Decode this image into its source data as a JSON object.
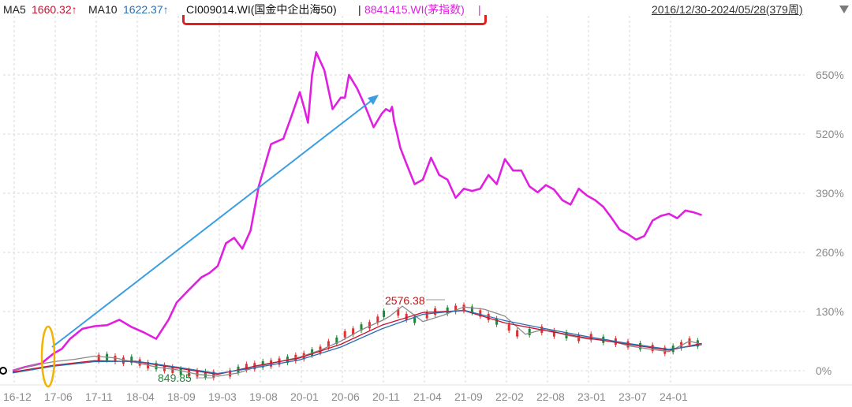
{
  "header": {
    "ma5_label": "MA5",
    "ma5_value": "1660.32↑",
    "ma10_label": "MA10",
    "ma10_value": "1622.37↑",
    "series1_label": "CI009014.WI(国金中企出海50)",
    "separator1": "|",
    "series2_label": "8841415.WI(茅指数)",
    "separator2": "|",
    "date_range": "2016/12/30-2024/05/28(379周)",
    "ma5_color": "#c8102e",
    "ma10_color": "#2a6fb0",
    "series2_color": "#e020e0",
    "highlight_box_color": "#e02020"
  },
  "chart_data": {
    "type": "line",
    "x_ticks": [
      "16-12",
      "17-06",
      "17-11",
      "18-04",
      "18-09",
      "19-03",
      "19-08",
      "20-01",
      "20-06",
      "20-11",
      "21-04",
      "21-09",
      "22-02",
      "22-08",
      "23-01",
      "23-07",
      "24-01"
    ],
    "y_ticks": [
      "0%",
      "130%",
      "260%",
      "390%",
      "520%",
      "650%"
    ],
    "ylim": [
      -30,
      760
    ],
    "annotations": {
      "max_label": "2576.38",
      "min_label": "849.85"
    },
    "series": [
      {
        "name": "8841415.WI(茅指数)",
        "color": "#e020e0",
        "x": [
          0,
          0.3,
          0.7,
          1.0,
          1.2,
          1.4,
          1.7,
          2.0,
          2.3,
          2.6,
          2.9,
          3.2,
          3.5,
          3.8,
          4.0,
          4.3,
          4.6,
          4.8,
          5.0,
          5.2,
          5.4,
          5.6,
          5.8,
          6.0,
          6.3,
          6.6,
          6.8,
          7.0,
          7.1,
          7.2,
          7.3,
          7.4,
          7.6,
          7.8,
          8.0,
          8.1,
          8.2,
          8.4,
          8.6,
          8.8,
          9.0,
          9.1,
          9.2,
          9.25,
          9.3,
          9.35,
          9.45,
          9.6,
          9.8,
          10.0,
          10.2,
          10.4,
          10.6,
          10.8,
          11.0,
          11.2,
          11.4,
          11.6,
          11.8,
          12.0,
          12.2,
          12.4,
          12.6,
          12.8,
          13.0,
          13.2,
          13.4,
          13.6,
          13.8,
          14.0,
          14.2,
          14.4,
          14.6,
          14.8,
          15.0,
          15.2,
          15.4,
          15.6,
          15.8,
          16.0,
          16.2,
          16.4,
          16.6,
          16.8
        ],
        "values": [
          0,
          8,
          16,
          38,
          48,
          70,
          92,
          98,
          100,
          112,
          96,
          84,
          70,
          112,
          150,
          178,
          205,
          215,
          230,
          280,
          292,
          268,
          308,
          405,
          498,
          510,
          560,
          612,
          580,
          545,
          650,
          700,
          660,
          575,
          600,
          600,
          650,
          620,
          580,
          535,
          565,
          575,
          570,
          580,
          548,
          530,
          490,
          455,
          410,
          420,
          468,
          430,
          420,
          380,
          400,
          395,
          400,
          430,
          410,
          465,
          440,
          440,
          405,
          392,
          408,
          398,
          375,
          365,
          400,
          385,
          375,
          360,
          336,
          310,
          300,
          288,
          296,
          330,
          340,
          345,
          335,
          352,
          348,
          342
        ]
      },
      {
        "name": "CI009014.WI(国金中企出海50)",
        "color": "#8a8a8a",
        "x": [
          0,
          0.5,
          1.0,
          1.5,
          2.0,
          2.5,
          3.0,
          3.5,
          4.0,
          4.5,
          5.0,
          5.5,
          6.0,
          6.5,
          7.0,
          7.5,
          8.0,
          8.5,
          9.0,
          9.2,
          9.5,
          10.0,
          10.5,
          11.0,
          11.5,
          12.0,
          12.5,
          13.0,
          13.5,
          14.0,
          14.5,
          15.0,
          15.5,
          16.0,
          16.5,
          16.8
        ],
        "values": [
          0,
          12,
          20,
          25,
          32,
          28,
          18,
          8,
          2,
          -8,
          -12,
          -5,
          10,
          20,
          30,
          45,
          65,
          90,
          110,
          120,
          142,
          108,
          122,
          140,
          135,
          120,
          80,
          92,
          78,
          70,
          68,
          55,
          48,
          42,
          65,
          58
        ]
      },
      {
        "name": "MA5",
        "color": "#c8102e",
        "x": [
          0,
          1,
          2,
          3,
          4,
          5,
          6,
          7,
          8,
          9,
          10,
          11,
          12,
          13,
          14,
          15,
          16,
          16.8
        ],
        "values": [
          -3,
          12,
          22,
          20,
          6,
          -8,
          12,
          28,
          58,
          100,
          128,
          132,
          105,
          88,
          72,
          58,
          45,
          60
        ]
      },
      {
        "name": "MA10",
        "color": "#2a6fb0",
        "x": [
          0,
          1,
          2,
          3,
          4,
          5,
          6,
          7,
          8,
          9,
          10,
          11,
          12,
          13,
          14,
          15,
          16,
          16.8
        ],
        "values": [
          -5,
          10,
          20,
          21,
          8,
          -6,
          8,
          24,
          52,
          92,
          124,
          133,
          110,
          92,
          75,
          60,
          47,
          57
        ]
      }
    ],
    "candles": [
      {
        "x": 2.1,
        "v": 28
      },
      {
        "x": 2.3,
        "v": 30
      },
      {
        "x": 2.5,
        "v": 26
      },
      {
        "x": 2.7,
        "v": 22
      },
      {
        "x": 2.9,
        "v": 24
      },
      {
        "x": 3.1,
        "v": 18
      },
      {
        "x": 3.3,
        "v": 12
      },
      {
        "x": 3.5,
        "v": 10
      },
      {
        "x": 3.7,
        "v": 6
      },
      {
        "x": 3.9,
        "v": 2
      },
      {
        "x": 4.1,
        "v": -2
      },
      {
        "x": 4.3,
        "v": -5
      },
      {
        "x": 4.5,
        "v": -6
      },
      {
        "x": 4.7,
        "v": -8
      },
      {
        "x": 4.9,
        "v": -9
      },
      {
        "x": 5.3,
        "v": -6
      },
      {
        "x": 5.5,
        "v": 2
      },
      {
        "x": 5.7,
        "v": 8
      },
      {
        "x": 5.9,
        "v": 10
      },
      {
        "x": 6.1,
        "v": 14
      },
      {
        "x": 6.3,
        "v": 16
      },
      {
        "x": 6.5,
        "v": 20
      },
      {
        "x": 6.7,
        "v": 24
      },
      {
        "x": 6.9,
        "v": 28
      },
      {
        "x": 7.1,
        "v": 32
      },
      {
        "x": 7.3,
        "v": 40
      },
      {
        "x": 7.5,
        "v": 46
      },
      {
        "x": 7.7,
        "v": 58
      },
      {
        "x": 7.9,
        "v": 66
      },
      {
        "x": 8.1,
        "v": 80
      },
      {
        "x": 8.3,
        "v": 86
      },
      {
        "x": 8.5,
        "v": 95
      },
      {
        "x": 8.7,
        "v": 100
      },
      {
        "x": 8.9,
        "v": 112
      },
      {
        "x": 9.05,
        "v": 125
      },
      {
        "x": 9.4,
        "v": 128
      },
      {
        "x": 9.6,
        "v": 118
      },
      {
        "x": 9.8,
        "v": 112
      },
      {
        "x": 10.1,
        "v": 122
      },
      {
        "x": 10.3,
        "v": 130
      },
      {
        "x": 10.6,
        "v": 132
      },
      {
        "x": 10.8,
        "v": 136
      },
      {
        "x": 11.0,
        "v": 138
      },
      {
        "x": 11.2,
        "v": 134
      },
      {
        "x": 11.4,
        "v": 126
      },
      {
        "x": 11.6,
        "v": 118
      },
      {
        "x": 11.8,
        "v": 108
      },
      {
        "x": 12.1,
        "v": 95
      },
      {
        "x": 12.3,
        "v": 82
      },
      {
        "x": 12.6,
        "v": 85
      },
      {
        "x": 12.9,
        "v": 90
      },
      {
        "x": 13.2,
        "v": 82
      },
      {
        "x": 13.5,
        "v": 78
      },
      {
        "x": 13.8,
        "v": 72
      },
      {
        "x": 14.1,
        "v": 74
      },
      {
        "x": 14.4,
        "v": 68
      },
      {
        "x": 14.7,
        "v": 64
      },
      {
        "x": 15.0,
        "v": 58
      },
      {
        "x": 15.3,
        "v": 54
      },
      {
        "x": 15.6,
        "v": 50
      },
      {
        "x": 15.9,
        "v": 44
      },
      {
        "x": 16.1,
        "v": 48
      },
      {
        "x": 16.3,
        "v": 56
      },
      {
        "x": 16.5,
        "v": 64
      },
      {
        "x": 16.7,
        "v": 60
      }
    ],
    "title": "",
    "xlabel": "",
    "ylabel": "",
    "grid": true,
    "arrow_color": "#3a9ee0",
    "circle_color": "#f0b400"
  }
}
